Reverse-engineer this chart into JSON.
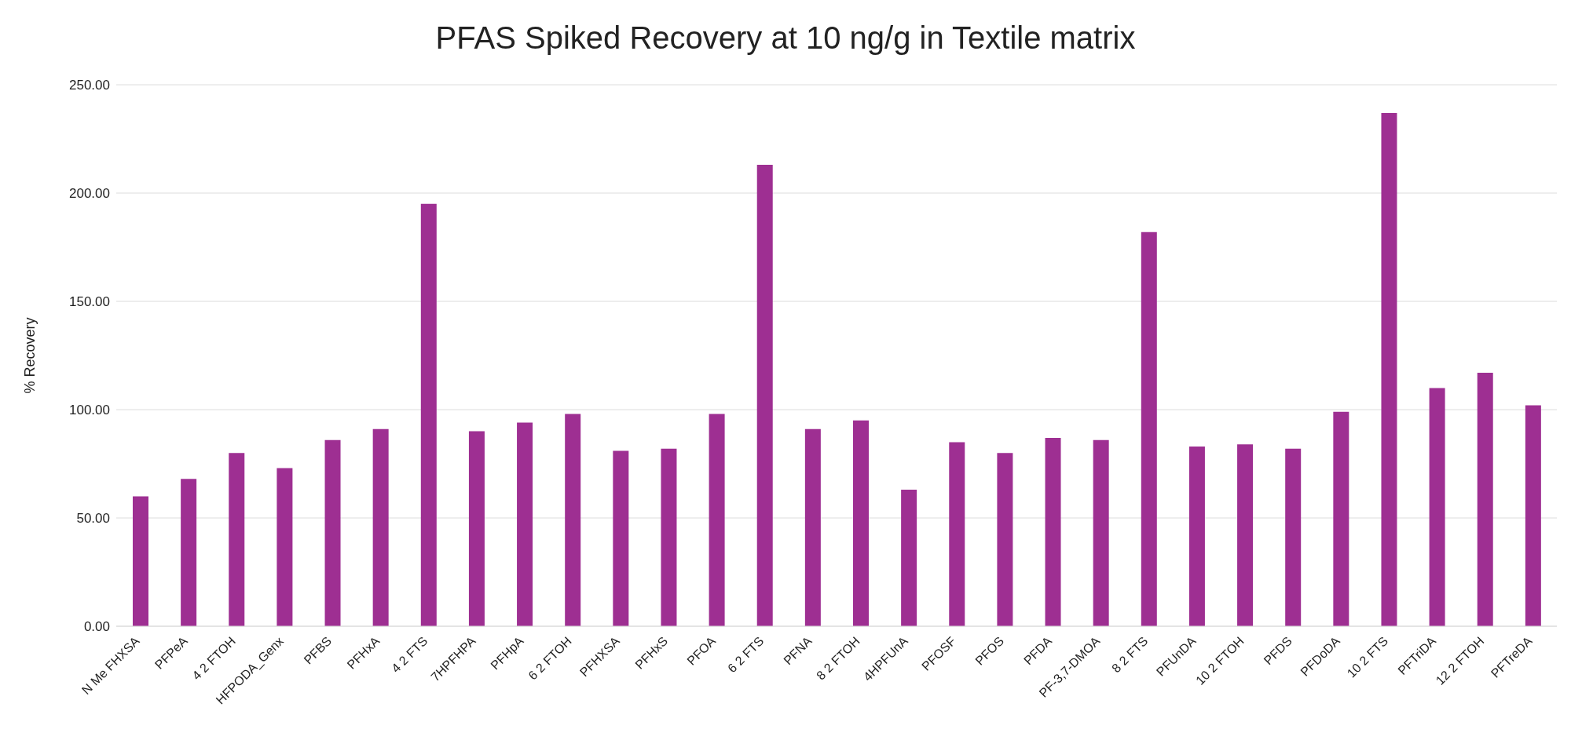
{
  "chart_data": {
    "type": "bar",
    "title": "PFAS Spiked Recovery at 10 ng/g in Textile matrix",
    "ylabel": "% Recovery",
    "categories": [
      "N Me FHXSA",
      "PFPeA",
      "4 2 FTOH",
      "HFPODA_Genx",
      "PFBS",
      "PFHxA",
      "4 2 FTS",
      "7HPFHPA",
      "PFHpA",
      "6 2 FTOH",
      "PFHXSA",
      "PFHxS",
      "PFOA",
      "6 2 FTS",
      "PFNA",
      "8 2 FTOH",
      "4HPFUnA",
      "PFOSF",
      "PFOS",
      "PFDA",
      "PF-3,7-DMOA",
      "8 2 FTS",
      "PFUnDA",
      "10 2 FTOH",
      "PFDS",
      "PFDoDA",
      "10 2 FTS",
      "PFTriDA",
      "12 2 FTOH",
      "PFTreDA"
    ],
    "values": [
      60,
      68,
      80,
      73,
      86,
      91,
      195,
      90,
      94,
      98,
      81,
      82,
      98,
      213,
      91,
      95,
      63,
      85,
      80,
      87,
      86,
      182,
      83,
      84,
      82,
      99,
      237,
      110,
      117,
      102
    ],
    "color": "#9e2f92",
    "ylim": [
      0,
      250
    ],
    "yticks": [
      {
        "value": 0,
        "label": "0.00"
      },
      {
        "value": 50,
        "label": "50.00"
      },
      {
        "value": 100,
        "label": "100.00"
      },
      {
        "value": 150,
        "label": "150.00"
      },
      {
        "value": 200,
        "label": "200.00"
      },
      {
        "value": 250,
        "label": "250.00"
      }
    ],
    "grid": "y"
  }
}
